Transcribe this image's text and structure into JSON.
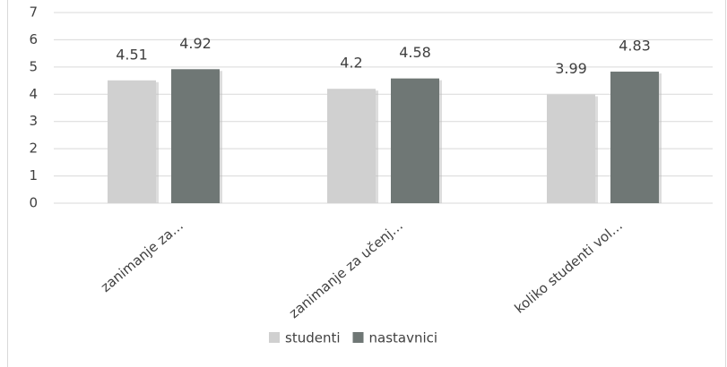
{
  "chart_data": {
    "type": "bar",
    "categories": [
      "zanimanje za…",
      "zanimanje za učenj…",
      "koliko studenti vol…"
    ],
    "series": [
      {
        "name": "studenti",
        "color": "#d0d0d0",
        "values": [
          4.51,
          4.2,
          3.99
        ]
      },
      {
        "name": "nastavnici",
        "color": "#6f7775",
        "values": [
          4.92,
          4.58,
          4.83
        ]
      }
    ],
    "ylim": [
      0,
      7
    ],
    "yticks": [
      0,
      1,
      2,
      3,
      4,
      5,
      6,
      7
    ],
    "grid": true,
    "legend": "bottom"
  }
}
